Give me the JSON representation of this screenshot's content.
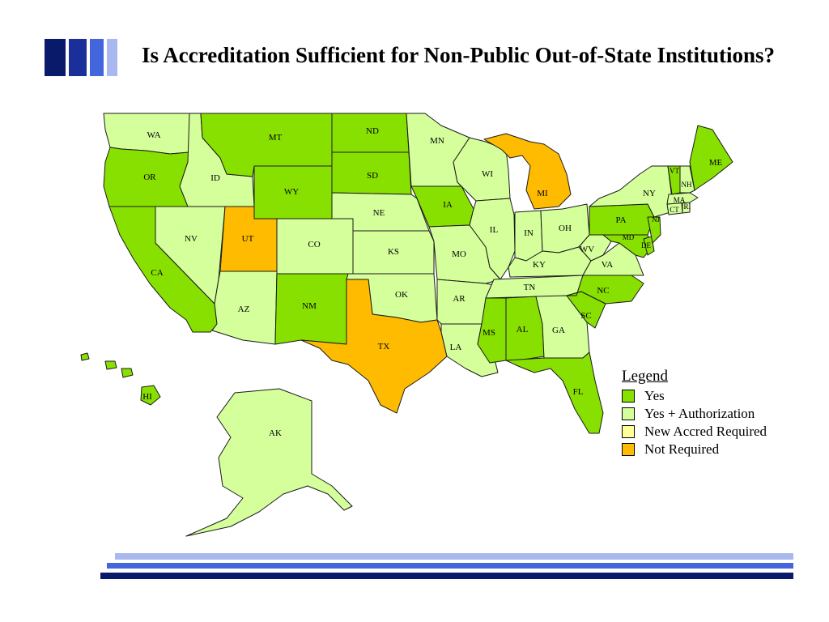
{
  "slide": {
    "title": "Is Accreditation Sufficient for Non-Public Out-of-State Institutions?"
  },
  "colors": {
    "yes": "#88e000",
    "yes_authorization": "#d4ff9a",
    "new_accred_required": "#ffff99",
    "not_required": "#ffbb00",
    "accent_dark": "#0a1a6b",
    "accent_mid": "#3355cc",
    "accent_light": "#aab8f0"
  },
  "legend": {
    "title": "Legend",
    "items": [
      {
        "key": "yes",
        "label": "Yes",
        "color": "#88e000"
      },
      {
        "key": "yes_authorization",
        "label": "Yes + Authorization",
        "color": "#d4ff9a"
      },
      {
        "key": "new_accred_required",
        "label": "New Accred Required",
        "color": "#ffff99"
      },
      {
        "key": "not_required",
        "label": "Not Required",
        "color": "#ffbb00"
      }
    ]
  },
  "states": {
    "WA": {
      "label": "WA",
      "status": "yes_authorization"
    },
    "OR": {
      "label": "OR",
      "status": "yes"
    },
    "CA": {
      "label": "CA",
      "status": "yes"
    },
    "ID": {
      "label": "ID",
      "status": "yes_authorization"
    },
    "NV": {
      "label": "NV",
      "status": "yes_authorization"
    },
    "MT": {
      "label": "MT",
      "status": "yes"
    },
    "WY": {
      "label": "WY",
      "status": "yes"
    },
    "UT": {
      "label": "UT",
      "status": "not_required"
    },
    "CO": {
      "label": "CO",
      "status": "yes_authorization"
    },
    "AZ": {
      "label": "AZ",
      "status": "yes_authorization"
    },
    "NM": {
      "label": "NM",
      "status": "yes"
    },
    "ND": {
      "label": "ND",
      "status": "yes"
    },
    "SD": {
      "label": "SD",
      "status": "yes"
    },
    "NE": {
      "label": "NE",
      "status": "yes_authorization"
    },
    "KS": {
      "label": "KS",
      "status": "yes_authorization"
    },
    "OK": {
      "label": "OK",
      "status": "yes_authorization"
    },
    "TX": {
      "label": "TX",
      "status": "not_required"
    },
    "MN": {
      "label": "MN",
      "status": "yes_authorization"
    },
    "IA": {
      "label": "IA",
      "status": "yes"
    },
    "MO": {
      "label": "MO",
      "status": "yes_authorization"
    },
    "AR": {
      "label": "AR",
      "status": "yes_authorization"
    },
    "LA": {
      "label": "LA",
      "status": "yes_authorization"
    },
    "WI": {
      "label": "WI",
      "status": "yes_authorization"
    },
    "IL": {
      "label": "IL",
      "status": "yes_authorization"
    },
    "MI": {
      "label": "MI",
      "status": "not_required"
    },
    "IN": {
      "label": "IN",
      "status": "yes_authorization"
    },
    "OH": {
      "label": "OH",
      "status": "yes_authorization"
    },
    "KY": {
      "label": "KY",
      "status": "yes_authorization"
    },
    "TN": {
      "label": "TN",
      "status": "yes_authorization"
    },
    "MS": {
      "label": "MS",
      "status": "yes"
    },
    "AL": {
      "label": "AL",
      "status": "yes"
    },
    "GA": {
      "label": "GA",
      "status": "yes_authorization"
    },
    "FL": {
      "label": "FL",
      "status": "yes"
    },
    "SC": {
      "label": "SC",
      "status": "yes"
    },
    "NC": {
      "label": "NC",
      "status": "yes"
    },
    "VA": {
      "label": "VA",
      "status": "yes_authorization"
    },
    "WV": {
      "label": "WV",
      "status": "yes_authorization"
    },
    "PA": {
      "label": "PA",
      "status": "yes"
    },
    "NY": {
      "label": "NY",
      "status": "yes_authorization"
    },
    "MD": {
      "label": "MD",
      "status": "yes"
    },
    "DE": {
      "label": "DE",
      "status": "yes"
    },
    "NJ": {
      "label": "NJ",
      "status": "yes"
    },
    "CT": {
      "label": "CT",
      "status": "yes_authorization"
    },
    "RI": {
      "label": "RI",
      "status": "yes_authorization"
    },
    "MA": {
      "label": "MA",
      "status": "yes_authorization"
    },
    "VT": {
      "label": "VT",
      "status": "yes"
    },
    "NH": {
      "label": "NH",
      "status": "yes_authorization"
    },
    "ME": {
      "label": "ME",
      "status": "yes"
    },
    "AK": {
      "label": "AK",
      "status": "yes_authorization"
    },
    "HI": {
      "label": "HI",
      "status": "yes"
    }
  }
}
